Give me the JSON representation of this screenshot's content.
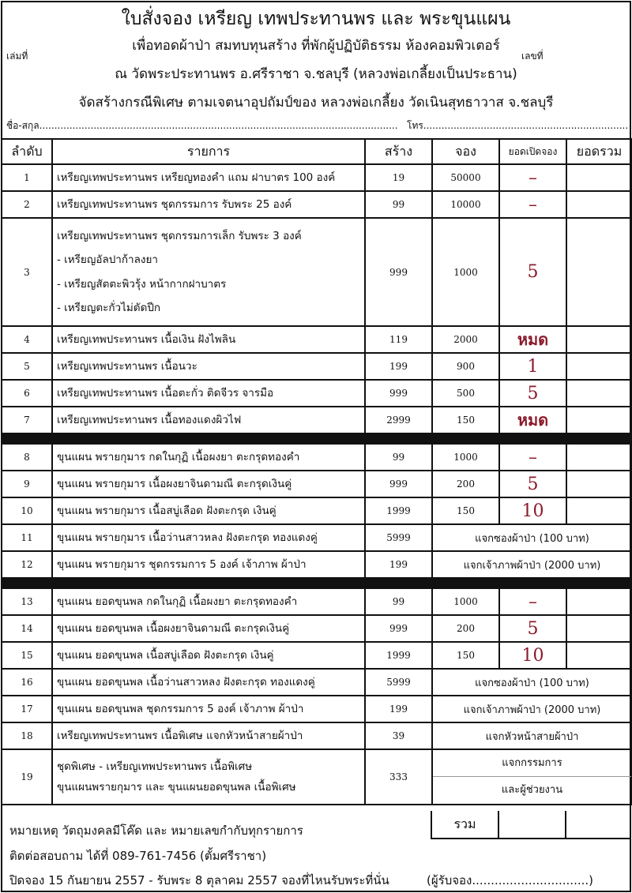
{
  "header": {
    "title": "ใบสั่งจอง เหรียญ เทพประทานพร และ พระขุนแผน",
    "line2": "เพื่อทอดผ้าป่า สมทบทุนสร้าง ที่พักผู้ปฏิบัติธรรม ห้องคอมพิวเตอร์",
    "line3": "ณ วัดพระประทานพร อ.ศรีราชา จ.ชลบุรี (หลวงพ่อเกลี้ยงเป็นประธาน)",
    "line4": "จัดสร้างกรณีพิเศษ ตามเจตนาอุปถัมป์ของ หลวงพ่อเกลี้ยง วัดเนินสุทธาวาส จ.ชลบุรี",
    "book_no_label": "เล่มที่",
    "number_label": "เลขที่",
    "name_label": "ชื่อ-สกุล.......................................................................................................................",
    "phone_label": "โทร.........................................................................................................."
  },
  "columns": [
    "ลำดับ",
    "รายการ",
    "สร้าง",
    "จอง",
    "ยอดเปิดจอง",
    "ยอดรวม"
  ],
  "colors": {
    "status": "#8b1a2b"
  },
  "rows": [
    {
      "no": "1",
      "item": [
        "เหรียญเทพประทานพร เหรียญทองคำ แถม ฝาบาตร 100 องค์"
      ],
      "build": "19",
      "reserve": "50000",
      "open": "–"
    },
    {
      "no": "2",
      "item": [
        "เหรียญเทพประทานพร ชุดกรรมการ รับพระ 25 องค์"
      ],
      "build": "99",
      "reserve": "10000",
      "open": "–"
    },
    {
      "no": "3",
      "item": [
        "เหรียญเทพประทานพร ชุดกรรมการเล็ก รับพระ 3 องค์",
        " - เหรียญอัลปาก้าลงยา",
        " - เหรียญสัตตะพิวรุ้ง หน้ากากฝาบาตร",
        " - เหรียญตะกั่วไม่ตัดปีก"
      ],
      "build": "999",
      "reserve": "1000",
      "open": "5"
    },
    {
      "no": "4",
      "item": [
        "เหรียญเทพประทานพร เนื้อเงิน ฝังไพลิน"
      ],
      "build": "119",
      "reserve": "2000",
      "open": "หมด"
    },
    {
      "no": "5",
      "item": [
        "เหรียญเทพประทานพร เนื้อนวะ"
      ],
      "build": "199",
      "reserve": "900",
      "open": "1"
    },
    {
      "no": "6",
      "item": [
        "เหรียญเทพประทานพร เนื้อตะกั่ว ติดจีวร จารมือ"
      ],
      "build": "999",
      "reserve": "500",
      "open": "5"
    },
    {
      "no": "7",
      "item": [
        "เหรียญเทพประทานพร เนื้อทองแดงผิวไฟ"
      ],
      "build": "2999",
      "reserve": "150",
      "open": "หมด"
    },
    {
      "sep": true
    },
    {
      "no": "8",
      "item": [
        "ขุนแผน พรายกุมาร กดในกุฏิ เนื้อผงยา ตะกรุดทองคำ"
      ],
      "build": "99",
      "reserve": "1000",
      "open": "–"
    },
    {
      "no": "9",
      "item": [
        "ขุนแผน พรายกุมาร เนื้อผงยาจินดามณี ตะกรุดเงินคู่"
      ],
      "build": "999",
      "reserve": "200",
      "open": "5"
    },
    {
      "no": "10",
      "item": [
        "ขุนแผน พรายกุมาร เนื้อสบู่เลือด ฝังตะกรุด เงินคู่"
      ],
      "build": "1999",
      "reserve": "150",
      "open": "10"
    },
    {
      "no": "11",
      "item": [
        "ขุนแผน พรายกุมาร เนื้อว่านสาวหลง ฝังตะกรุด ทองแดงคู่"
      ],
      "build": "5999",
      "note": [
        "แจกซองผ้าป่า (100 บาท)"
      ]
    },
    {
      "no": "12",
      "item": [
        "ขุนแผน พรายกุมาร ชุดกรรมการ 5 องค์ เจ้าภาพ ผ้าป่า"
      ],
      "build": "199",
      "note": [
        "แจกเจ้าภาพผ้าป่า (2000 บาท)"
      ]
    },
    {
      "sep": true
    },
    {
      "no": "13",
      "item": [
        "ขุนแผน ยอดขุนพล กดในกุฏิ เนื้อผงยา ตะกรุดทองคำ"
      ],
      "build": "99",
      "reserve": "1000",
      "open": "–"
    },
    {
      "no": "14",
      "item": [
        "ขุนแผน ยอดขุนพล เนื้อผงยาจินดามณี ตะกรุดเงินคู่"
      ],
      "build": "999",
      "reserve": "200",
      "open": "5"
    },
    {
      "no": "15",
      "item": [
        "ขุนแผน ยอดขุนพล เนื้อสบู่เลือด ฝังตะกรุด เงินคู่"
      ],
      "build": "1999",
      "reserve": "150",
      "open": "10"
    },
    {
      "no": "16",
      "item": [
        "ขุนแผน ยอดขุนพล เนื้อว่านสาวหลง ฝังตะกรุด ทองแดงคู่"
      ],
      "build": "5999",
      "note": [
        "แจกซองผ้าป่า (100 บาท)"
      ]
    },
    {
      "no": "17",
      "item": [
        "ขุนแผน ยอดขุนพล ชุดกรรมการ 5 องค์ เจ้าภาพ ผ้าป่า"
      ],
      "build": "199",
      "note": [
        "แจกเจ้าภาพผ้าป่า (2000 บาท)"
      ]
    },
    {
      "no": "18",
      "item": [
        "เหรียญเทพประทานพร เนื้อพิเศษ แจกหัวหน้าสายผ้าป่า"
      ],
      "build": "39",
      "note": [
        "แจกหัวหน้าสายผ้าป่า"
      ]
    },
    {
      "no": "19",
      "item": [
        "ชุดพิเศษ - เหรียญเทพประทานพร เนื้อพิเศษ",
        "ขุนแผนพรายกุมาร และ ขุนแผนยอดขุนพล เนื้อพิเศษ"
      ],
      "build": "333",
      "note": [
        "แจกกรรมการ",
        "และผู้ช่วยงาน"
      ]
    }
  ],
  "footer": {
    "total_label": "รวม",
    "remark": "หมายเหตุ วัตถุมงคลมีโค๊ด และ หมายเลขกำกับทุกรายการ",
    "contact": "ติดต่อสอบถาม ได้ที่ 089-761-7456  (ตั้มศรีราชา)",
    "dates": "ปิดจอง 15 กันยายน 2557 - รับพระ 8 ตุลาคม 2557 จองที่ไหนรับพระที่นั่น",
    "receiver": "(ผู้รับจอง...............................)"
  }
}
